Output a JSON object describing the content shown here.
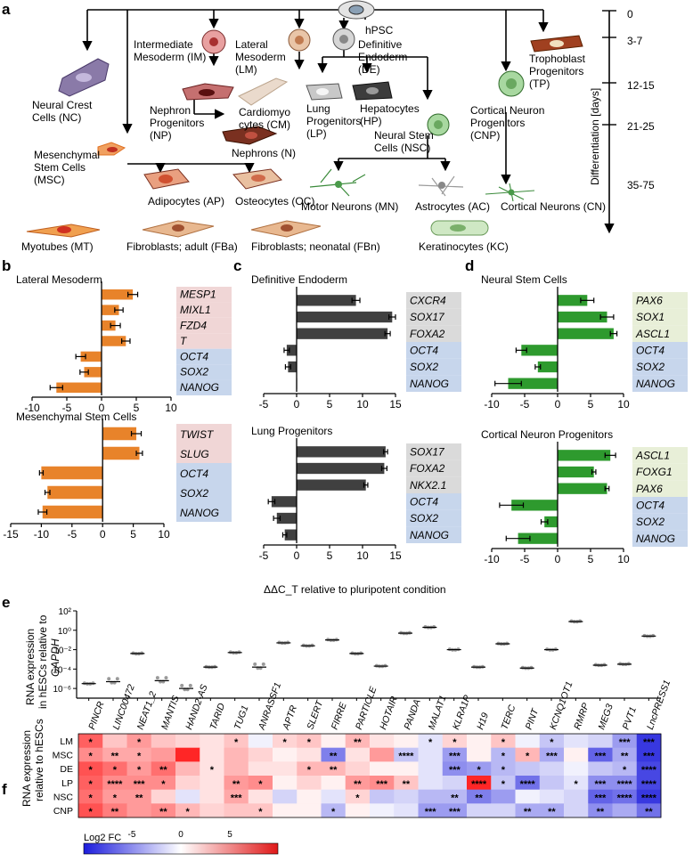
{
  "panel_letters": {
    "a": "a",
    "b": "b",
    "c": "c",
    "d": "d",
    "e": "e",
    "f": "f"
  },
  "panel_a": {
    "cells": {
      "hpsc": "hPSC",
      "im": [
        "Intermediate",
        "Mesoderm (IM)"
      ],
      "lm": [
        "Lateral",
        "Mesoderm",
        "(LM)"
      ],
      "de": [
        "Definitive",
        "Endoderm",
        "(DE)"
      ],
      "tp": [
        "Trophoblast",
        "Progenitors",
        "(TP)"
      ],
      "nc": [
        "Neural Crest",
        "Cells (NC)"
      ],
      "np": [
        "Nephron",
        "Progenitors",
        "(NP)"
      ],
      "cm": [
        "Cardiomyo",
        "cytes (CM)"
      ],
      "lp": [
        "Lung",
        "Progenitors",
        "(LP)"
      ],
      "hp": [
        "Hepatocytes",
        "(HP)"
      ],
      "cnp": [
        "Cortical Neuron",
        "Progenitors",
        "(CNP)"
      ],
      "n": "Nephrons (N)",
      "msc": [
        "Mesenchymal",
        "Stem Cells",
        "(MSC)"
      ],
      "nsc": [
        "Neural Stem",
        "Cells (NSC)"
      ],
      "ap": "Adipocytes (AP)",
      "oc": "Osteocytes (OC)",
      "mn": "Motor Neurons (MN)",
      "ac": "Astrocytes (AC)",
      "cn": "Cortical Neurons (CN)",
      "mt": "Myotubes (MT)",
      "fba": "Fibroblasts; adult (FBa)",
      "fbn": "Fibroblasts; neonatal (FBn)",
      "kc": "Keratinocytes (KC)"
    },
    "timeline": {
      "ticks": [
        "0",
        "3-7",
        "12-15",
        "21-25",
        "35-75"
      ],
      "label": "Differentiation [days]"
    }
  },
  "panel_b": {
    "top_title": "Lateral Mesoderm",
    "bottom_title": "Mesenchymal Stem Cells"
  },
  "panel_c": {
    "top_title": "Definitive Endoderm",
    "bottom_title": "Lung Progenitors",
    "xlabel": "ΔΔC_T relative to pluripotent condition"
  },
  "panel_d": {
    "top_title": "Neural Stem Cells",
    "bottom_title": "Cortical Neuron Progenitors"
  },
  "panel_e": {
    "ylabel": [
      "RNA expression",
      "in hESCs relative to",
      "GAPDH"
    ]
  },
  "panel_f": {
    "ylabel": [
      "RNA expression",
      "relative to hESCs"
    ],
    "legend_title": "Log2 FC",
    "legend_ticks": [
      "-5",
      "0",
      "5"
    ]
  },
  "colors": {
    "orange": "#e8832a",
    "dark_gray": "#404040",
    "green": "#2e9a2e",
    "marker_pos": "#f0d6d6",
    "marker_neg": "#c7d6ec",
    "marker_gray": "#dadada",
    "marker_green": "#e8efd8"
  },
  "chart_data": [
    {
      "id": "b_top",
      "type": "bar",
      "orientation": "horizontal",
      "categories": [
        "MESP1",
        "MIXL1",
        "FZD4",
        "T",
        "OCT4",
        "SOX2",
        "NANOG"
      ],
      "values": [
        4.5,
        2.5,
        2.0,
        3.5,
        -3.0,
        -2.5,
        -6.5
      ],
      "errors": [
        0.7,
        0.6,
        0.7,
        0.6,
        0.7,
        0.6,
        0.9
      ],
      "xlim": [
        -10,
        10
      ],
      "xticks": [
        -10,
        -5,
        0,
        5,
        10
      ]
    },
    {
      "id": "b_bottom",
      "type": "bar",
      "orientation": "horizontal",
      "categories": [
        "TWIST",
        "SLUG",
        "OCT4",
        "SOX2",
        "NANOG"
      ],
      "values": [
        5.5,
        6.0,
        -10.0,
        -9.0,
        -9.8
      ],
      "errors": [
        0.8,
        0.5,
        0.3,
        0.4,
        0.7
      ],
      "xlim": [
        -15,
        10
      ],
      "xticks": [
        -15,
        -10,
        -5,
        0,
        5,
        10
      ]
    },
    {
      "id": "c_top",
      "type": "bar",
      "orientation": "horizontal",
      "categories": [
        "CXCR4",
        "SOX17",
        "FOXA2",
        "OCT4",
        "SOX2",
        "NANOG"
      ],
      "values": [
        9.0,
        14.5,
        13.8,
        -1.5,
        -1.3,
        0.0
      ],
      "errors": [
        0.6,
        0.5,
        0.4,
        0.4,
        0.4,
        0.0
      ],
      "xlim": [
        -5,
        15
      ],
      "xticks": [
        -5,
        0,
        5,
        10,
        15
      ]
    },
    {
      "id": "c_bottom",
      "type": "bar",
      "orientation": "horizontal",
      "categories": [
        "SOX17",
        "FOXA2",
        "NKX2.1",
        "OCT4",
        "SOX2",
        "NANOG"
      ],
      "values": [
        13.5,
        13.3,
        10.5,
        -3.8,
        -3.0,
        -1.8
      ],
      "errors": [
        0.3,
        0.4,
        0.3,
        0.5,
        0.5,
        0.3
      ],
      "xlim": [
        -5,
        15
      ],
      "xticks": [
        -5,
        0,
        5,
        10,
        15
      ]
    },
    {
      "id": "d_top",
      "type": "bar",
      "orientation": "horizontal",
      "categories": [
        "PAX6",
        "SOX1",
        "ASCL1",
        "OCT4",
        "SOX2",
        "NANOG"
      ],
      "values": [
        4.5,
        7.5,
        8.5,
        -5.5,
        -3.0,
        -7.5
      ],
      "errors": [
        1.0,
        1.0,
        0.5,
        0.8,
        0.4,
        2.0
      ],
      "xlim": [
        -10,
        10
      ],
      "xticks": [
        -10,
        -5,
        0,
        5,
        10
      ]
    },
    {
      "id": "d_bottom",
      "type": "bar",
      "orientation": "horizontal",
      "categories": [
        "ASCL1",
        "FOXG1",
        "PAX6",
        "OCT4",
        "SOX2",
        "NANOG"
      ],
      "values": [
        8.0,
        5.5,
        7.5,
        -7.0,
        -2.0,
        -6.0
      ],
      "errors": [
        0.8,
        0.3,
        0.3,
        1.8,
        0.5,
        1.8
      ],
      "xlim": [
        -10,
        10
      ],
      "xticks": [
        -10,
        -5,
        0,
        5,
        10
      ]
    },
    {
      "id": "e",
      "type": "scatter",
      "categories": [
        "PINCR",
        "LINC00472",
        "NEAT1_2",
        "MANTIS",
        "HAND2-AS",
        "TARID",
        "TUG1",
        "ANRASSF1",
        "APTR",
        "SLERT",
        "FIRRE",
        "PARTICLE",
        "HOTAIR",
        "PANDA",
        "MALAT1",
        "KLRA1P",
        "H19",
        "TERC",
        "PINT",
        "KCNQ1OT1",
        "RMRP",
        "MEG3",
        "PVT1",
        "LncPRESS1"
      ],
      "median_log10": [
        -5.5,
        -5.3,
        -2.4,
        -5.2,
        -6.0,
        -3.8,
        -2.3,
        -3.8,
        -1.3,
        -1.6,
        -1.0,
        -2.4,
        -3.7,
        -0.3,
        0.3,
        -2.0,
        -3.8,
        -1.4,
        -3.9,
        -2.0,
        0.9,
        -3.6,
        -3.5,
        -0.6
      ],
      "ylim_log10": [
        -7,
        2
      ],
      "yticks": [
        "10⁻⁶",
        "10⁻⁴",
        "10⁻²",
        "10⁰",
        "10²"
      ]
    },
    {
      "id": "f",
      "type": "heatmap",
      "rows": [
        "LM",
        "MSC",
        "DE",
        "LP",
        "NSC",
        "CNP"
      ],
      "columns": [
        "PINCR",
        "LINC00472",
        "NEAT1_2",
        "MANTIS",
        "HAND2-AS",
        "TARID",
        "TUG1",
        "ANRASSF1",
        "APTR",
        "SLERT",
        "FIRRE",
        "PARTICLE",
        "HOTAIR",
        "PANDA",
        "MALAT1",
        "KLRA1P",
        "H19",
        "TERC",
        "PINT",
        "KCNQ1OT1",
        "RMRP",
        "MEG3",
        "PVT1",
        "LncPRESS1"
      ],
      "values": [
        [
          5.5,
          2.0,
          3.5,
          2.0,
          1.5,
          1.0,
          2.0,
          -0.5,
          1.5,
          2.0,
          0.5,
          2.5,
          1.0,
          0.5,
          -1.0,
          1.5,
          0.5,
          2.0,
          -0.5,
          -2.0,
          -1.0,
          -1.5,
          -3.5,
          -7.0
        ],
        [
          4.0,
          3.0,
          3.0,
          3.5,
          7.5,
          1.0,
          2.5,
          1.5,
          0.5,
          1.0,
          -4.5,
          1.0,
          3.5,
          -2.0,
          -1.0,
          -3.5,
          0.5,
          -2.5,
          2.5,
          -3.0,
          0.5,
          -5.5,
          -3.0,
          -7.0
        ],
        [
          6.0,
          5.0,
          3.5,
          5.0,
          2.5,
          1.0,
          2.5,
          1.0,
          1.0,
          2.5,
          2.5,
          1.5,
          0.5,
          0.5,
          -1.0,
          -4.0,
          -3.5,
          -2.5,
          -2.0,
          -1.5,
          -0.5,
          -2.0,
          -2.5,
          -6.5
        ],
        [
          5.5,
          4.0,
          4.0,
          4.0,
          1.5,
          1.0,
          3.5,
          4.0,
          0.5,
          1.5,
          0.5,
          3.5,
          4.0,
          2.0,
          -1.0,
          -1.5,
          7.5,
          -2.0,
          -5.0,
          -2.0,
          -1.0,
          -4.0,
          -4.0,
          -6.5
        ],
        [
          5.0,
          3.5,
          3.5,
          1.5,
          -1.0,
          1.0,
          3.0,
          1.0,
          -1.5,
          0.5,
          -1.0,
          1.5,
          -2.0,
          -1.5,
          -2.5,
          -2.5,
          -4.5,
          -3.5,
          -0.5,
          -1.0,
          -1.5,
          -5.5,
          -5.0,
          -7.0
        ],
        [
          6.0,
          4.5,
          3.5,
          4.0,
          2.5,
          1.5,
          2.0,
          2.0,
          0.5,
          0.5,
          -2.5,
          0.5,
          -0.5,
          -1.0,
          -3.5,
          -3.5,
          -1.5,
          -1.5,
          -3.0,
          -3.0,
          -1.5,
          -4.0,
          -3.0,
          -5.0
        ]
      ],
      "stars": [
        [
          "*",
          "",
          "*",
          "",
          "",
          "",
          "*",
          "",
          "*",
          "*",
          "",
          "**",
          "",
          "",
          "*",
          "*",
          "",
          "*",
          "",
          "*",
          "",
          "",
          "***",
          "***"
        ],
        [
          "*",
          "**",
          "*",
          "",
          "",
          "",
          "",
          "",
          "",
          "",
          "**",
          "",
          "",
          "****",
          "",
          "***",
          "",
          "*",
          "*",
          "***",
          "",
          "***",
          "**",
          "***"
        ],
        [
          "*",
          "*",
          "*",
          "**",
          "",
          "*",
          "",
          "",
          "",
          "*",
          "**",
          "",
          "",
          "",
          "",
          "***",
          "*",
          "*",
          "",
          "",
          "",
          "",
          "*",
          "****"
        ],
        [
          "*",
          "****",
          "***",
          "*",
          "",
          "",
          "**",
          "*",
          "",
          "",
          "",
          "**",
          "***",
          "**",
          "",
          "",
          "****",
          "*",
          "****",
          "",
          "*",
          "***",
          "****",
          "****"
        ],
        [
          "*",
          "*",
          "**",
          "",
          "",
          "",
          "***",
          "",
          "",
          "",
          "",
          "*",
          "",
          "",
          "",
          "**",
          "**",
          "",
          "",
          "",
          "",
          "***",
          "****",
          "****"
        ],
        [
          "*",
          "**",
          "",
          "**",
          "*",
          "",
          "",
          "*",
          "",
          "",
          "*",
          "",
          "",
          "",
          "***",
          "***",
          "",
          "",
          "**",
          "**",
          "",
          "**",
          "",
          "**"
        ]
      ],
      "colorbar_range": [
        -8,
        8
      ]
    }
  ]
}
